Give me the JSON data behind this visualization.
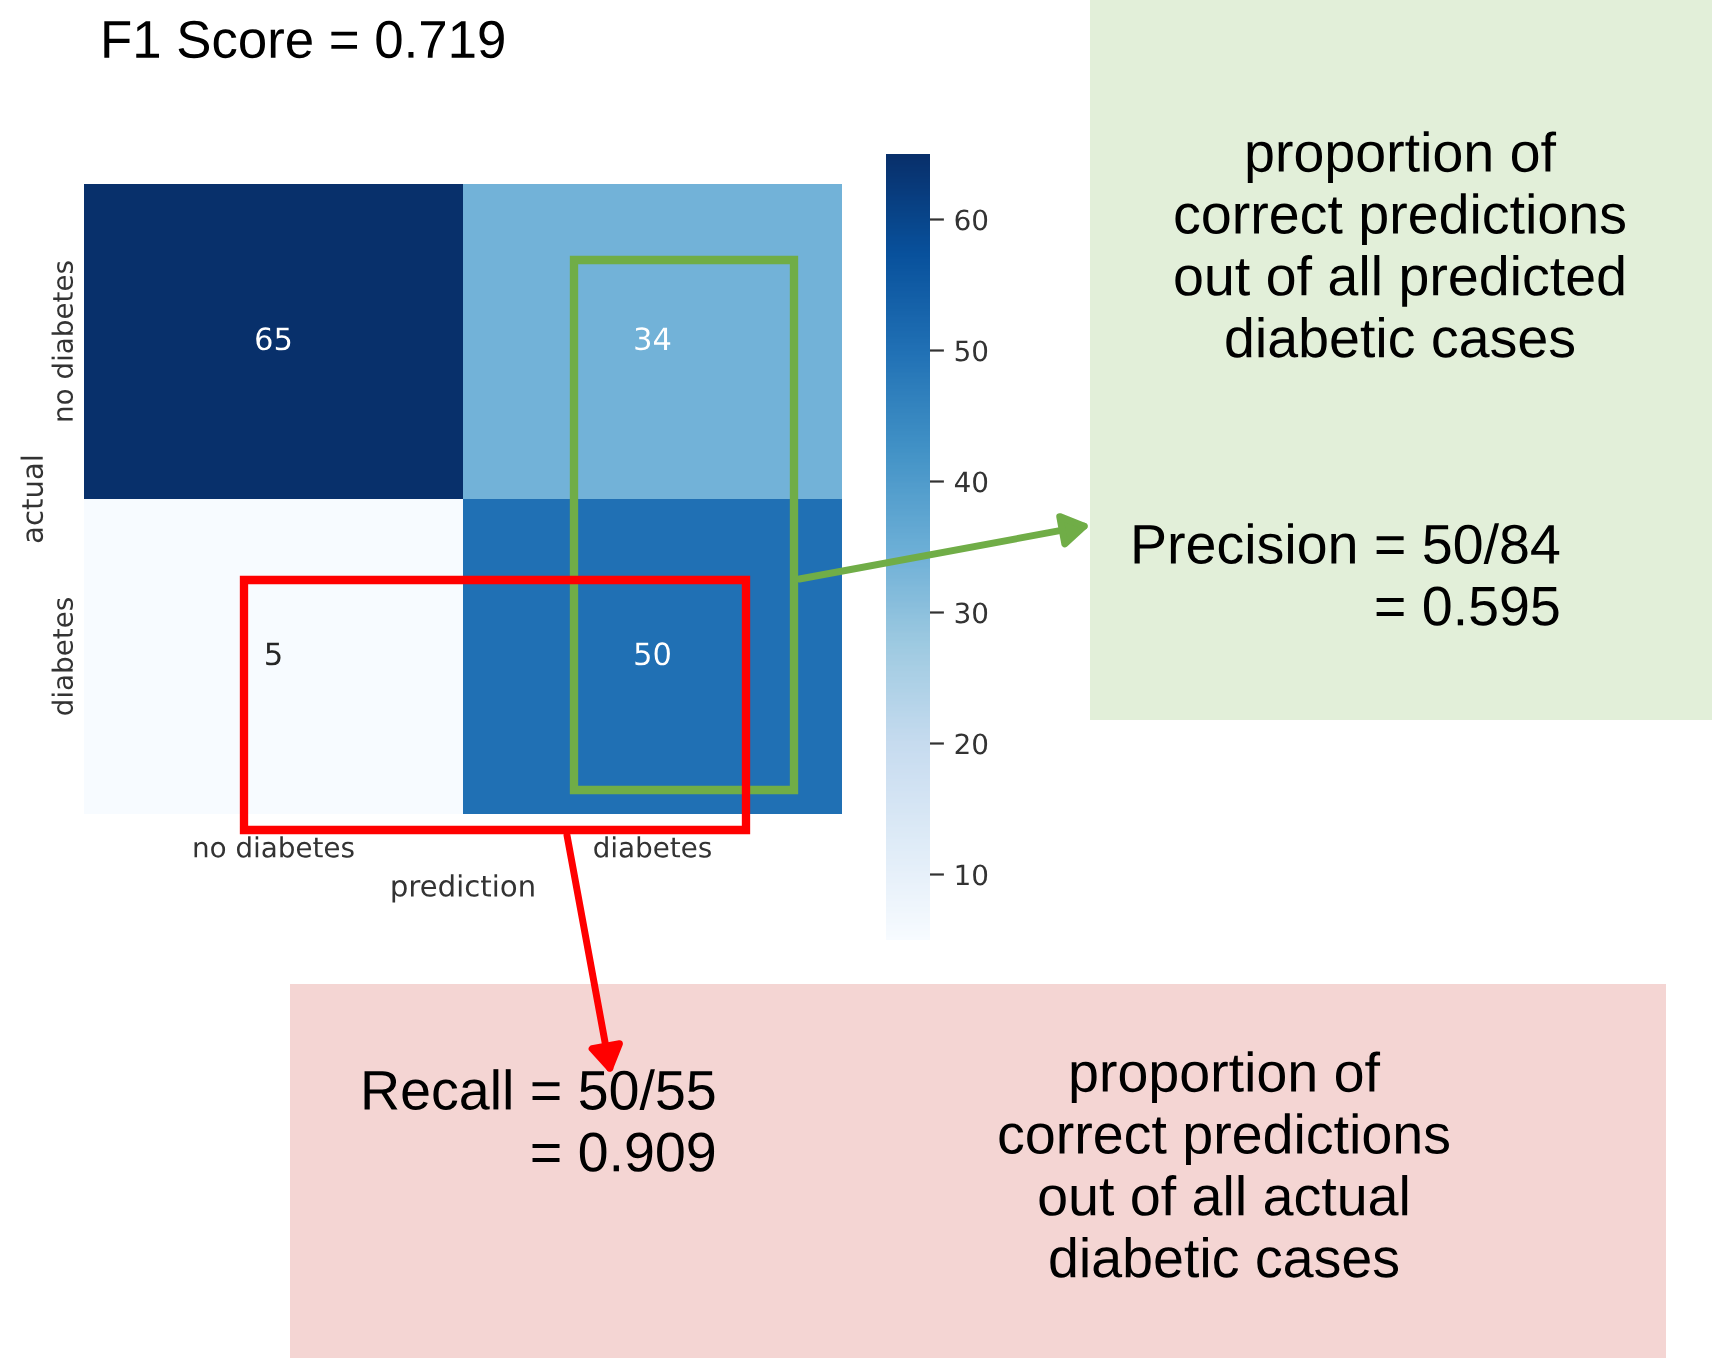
{
  "chart_data": {
    "type": "heatmap",
    "title": "F1 Score = 0.719",
    "xlabel": "prediction",
    "ylabel": "actual",
    "categories": [
      "no diabetes",
      "diabetes"
    ],
    "y_categories": [
      "no diabetes",
      "diabetes"
    ],
    "cells": [
      [
        65,
        34
      ],
      [
        5,
        50
      ]
    ],
    "clim": [
      5,
      65
    ],
    "cticks": [
      10,
      20,
      30,
      40,
      50,
      60
    ],
    "data_labels": true,
    "annotations": [
      "proportion of\ncorrect predictions\nout of all predicted\ndiabetic cases",
      "Precision = 50/84\n= 0.595",
      "Recall = 50/55\n= 0.909",
      "proportion of\ncorrect predictions\nout of all actual\ndiabetic cases"
    ]
  }
}
